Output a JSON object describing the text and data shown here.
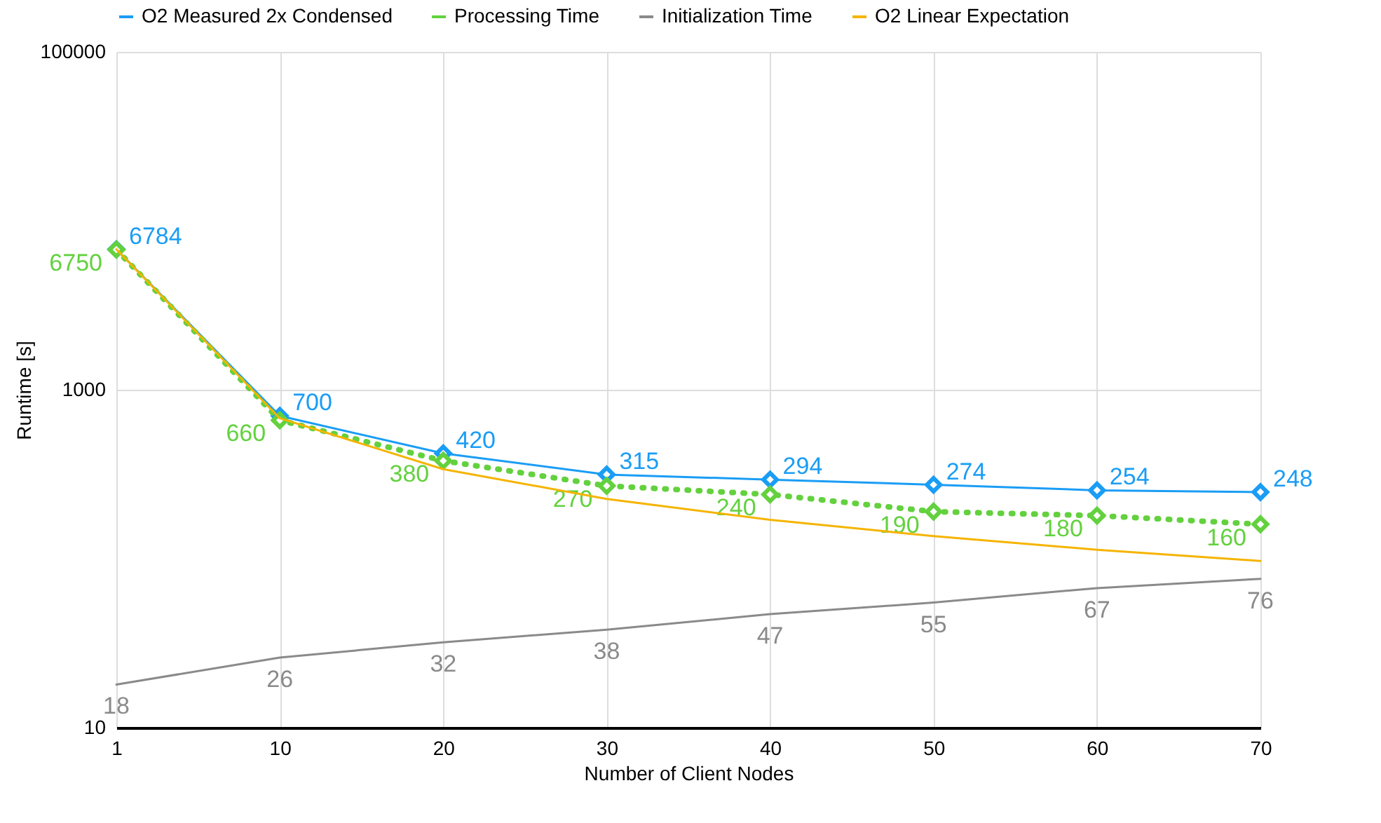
{
  "chart_data": {
    "type": "line",
    "xlabel": "Number of Client Nodes",
    "ylabel": "Runtime [s]",
    "categories": [
      "1",
      "10",
      "20",
      "30",
      "40",
      "50",
      "60",
      "70"
    ],
    "log": true,
    "ylim": [
      10,
      100000
    ],
    "yticks": [
      10,
      1000,
      100000
    ],
    "grid": true,
    "legend": "top",
    "series": [
      {
        "name": "O2 Measured 2x Condensed",
        "color": "#1a9df5",
        "marker": "diamond",
        "line_style": "solid",
        "values": [
          6784,
          700,
          420,
          315,
          294,
          274,
          254,
          248
        ],
        "value_labels": [
          "6784",
          "700",
          "420",
          "315",
          "294",
          "274",
          "254",
          "248"
        ]
      },
      {
        "name": "Processing Time",
        "color": "#63d13e",
        "marker": "diamond",
        "line_style": "dotted",
        "values": [
          6750,
          660,
          380,
          270,
          240,
          190,
          180,
          160
        ],
        "value_labels": [
          "6750",
          "660",
          "380",
          "270",
          "240",
          "190",
          "180",
          "160"
        ]
      },
      {
        "name": "Initialization Time",
        "color": "#8a8a8a",
        "marker": "none",
        "line_style": "solid",
        "values": [
          18,
          26,
          32,
          38,
          47,
          55,
          67,
          76
        ],
        "value_labels": [
          "18",
          "26",
          "32",
          "38",
          "47",
          "55",
          "67",
          "76"
        ]
      },
      {
        "name": "O2 Linear Expectation",
        "color": "#f5b400",
        "marker": "none",
        "line_style": "solid",
        "values": [
          6784,
          678,
          339,
          226,
          170,
          136,
          113,
          97
        ]
      }
    ]
  }
}
